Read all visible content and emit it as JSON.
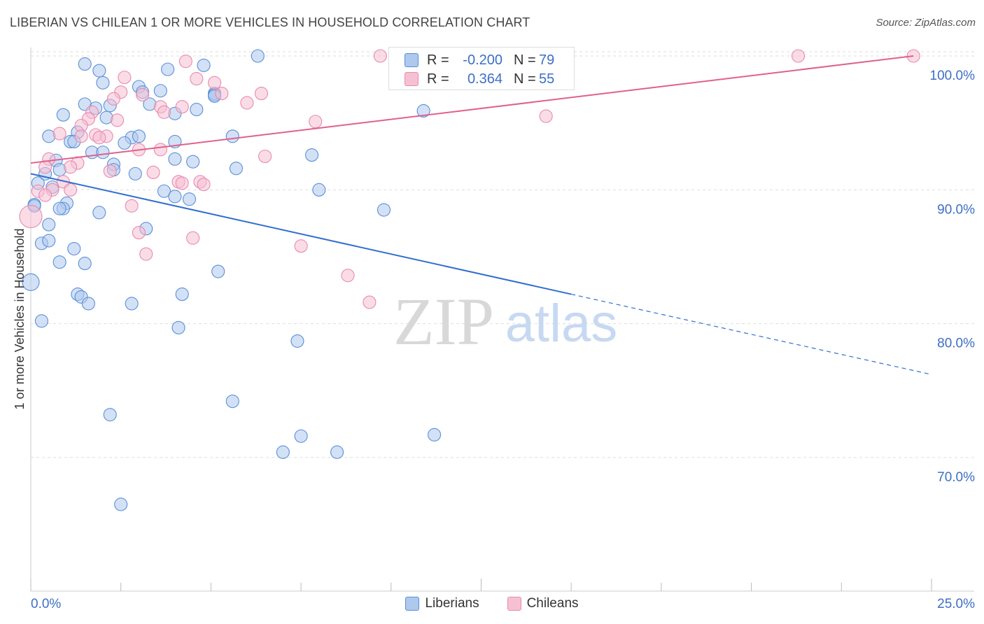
{
  "title": "LIBERIAN VS CHILEAN 1 OR MORE VEHICLES IN HOUSEHOLD CORRELATION CHART",
  "source": "Source: ZipAtlas.com",
  "colors": {
    "blue_fill": "#aec8ee",
    "blue_stroke": "#5b8fd6",
    "blue_line": "#2f6fce",
    "pink_fill": "#f6c0d3",
    "pink_stroke": "#e98aac",
    "pink_line": "#e0608d",
    "axis_text": "#3d6fc4",
    "grid": "#dddddd"
  },
  "correlation_box": {
    "rows": [
      {
        "series": "Liberians",
        "r_label": "R =",
        "r_value": "-0.200",
        "n_label": "N =",
        "n_value": "79"
      },
      {
        "series": "Chileans",
        "r_label": "R =",
        "r_value": "0.364",
        "n_label": "N =",
        "n_value": "55"
      }
    ]
  },
  "legend": {
    "items": [
      {
        "label": "Liberians",
        "color": "blue"
      },
      {
        "label": "Chileans",
        "color": "pink"
      }
    ]
  },
  "watermark": {
    "zip": "ZIP",
    "atlas": "atlas"
  },
  "chart_data": {
    "type": "scatter",
    "title": "LIBERIAN VS CHILEAN 1 OR MORE VEHICLES IN HOUSEHOLD CORRELATION CHART",
    "xlabel": "",
    "ylabel": "1 or more Vehicles in Household",
    "xlim": [
      0,
      25
    ],
    "ylim": [
      60.5,
      101.8
    ],
    "x_tick_labels": [
      "0.0%",
      "25.0%"
    ],
    "y_ticks": [
      70,
      80,
      90,
      100
    ],
    "y_tick_labels": [
      "70.0%",
      "80.0%",
      "90.0%",
      "100.0%"
    ],
    "grid": "horizontal dashed",
    "legend_position": "bottom-center",
    "series": [
      {
        "name": "Liberians",
        "color": "blue",
        "trend": {
          "x0": 0.0,
          "y0": 91.2,
          "x_solid_end": 15.0,
          "y_solid_end": 82.2,
          "x1": 25.0,
          "y1": 76.2
        },
        "points": [
          [
            6.3,
            100.0
          ],
          [
            1.5,
            99.4
          ],
          [
            3.8,
            99.0
          ],
          [
            4.8,
            99.3
          ],
          [
            1.9,
            98.9
          ],
          [
            2.0,
            98.0
          ],
          [
            3.0,
            97.7
          ],
          [
            3.1,
            97.3
          ],
          [
            3.6,
            97.4
          ],
          [
            5.1,
            97.2
          ],
          [
            5.1,
            97.1
          ],
          [
            1.5,
            96.4
          ],
          [
            1.8,
            96.1
          ],
          [
            2.2,
            96.3
          ],
          [
            3.3,
            96.4
          ],
          [
            4.0,
            95.7
          ],
          [
            4.6,
            96.0
          ],
          [
            0.9,
            95.6
          ],
          [
            2.1,
            95.4
          ],
          [
            10.9,
            95.9
          ],
          [
            0.5,
            94.0
          ],
          [
            1.3,
            94.3
          ],
          [
            2.8,
            93.9
          ],
          [
            3.0,
            94.0
          ],
          [
            2.6,
            93.5
          ],
          [
            4.0,
            93.6
          ],
          [
            1.1,
            93.6
          ],
          [
            1.2,
            93.6
          ],
          [
            5.6,
            94.0
          ],
          [
            1.7,
            92.8
          ],
          [
            2.0,
            92.8
          ],
          [
            0.7,
            92.2
          ],
          [
            2.3,
            91.9
          ],
          [
            4.0,
            92.3
          ],
          [
            4.5,
            92.1
          ],
          [
            7.8,
            92.6
          ],
          [
            0.8,
            91.5
          ],
          [
            0.4,
            91.2
          ],
          [
            2.3,
            91.5
          ],
          [
            2.9,
            91.2
          ],
          [
            5.7,
            91.6
          ],
          [
            0.2,
            90.5
          ],
          [
            0.6,
            90.2
          ],
          [
            3.7,
            89.9
          ],
          [
            4.0,
            89.5
          ],
          [
            4.4,
            89.3
          ],
          [
            8.0,
            90.0
          ],
          [
            0.1,
            88.9
          ],
          [
            1.0,
            89.0
          ],
          [
            0.9,
            88.6
          ],
          [
            0.8,
            88.6
          ],
          [
            1.9,
            88.3
          ],
          [
            9.8,
            88.5
          ],
          [
            0.5,
            87.4
          ],
          [
            3.2,
            87.1
          ],
          [
            0.3,
            86.0
          ],
          [
            0.5,
            86.2
          ],
          [
            1.2,
            85.6
          ],
          [
            0.8,
            84.6
          ],
          [
            1.5,
            84.5
          ],
          [
            5.2,
            83.9
          ],
          [
            0.0,
            83.1
          ],
          [
            1.3,
            82.2
          ],
          [
            1.4,
            82.0
          ],
          [
            1.6,
            81.5
          ],
          [
            2.8,
            81.5
          ],
          [
            4.2,
            82.2
          ],
          [
            0.3,
            80.2
          ],
          [
            4.1,
            79.7
          ],
          [
            7.4,
            78.7
          ],
          [
            5.6,
            74.2
          ],
          [
            2.2,
            73.2
          ],
          [
            7.5,
            71.6
          ],
          [
            11.2,
            71.7
          ],
          [
            7.0,
            70.4
          ],
          [
            8.5,
            70.4
          ],
          [
            2.5,
            66.5
          ],
          [
            5.1,
            97.0
          ],
          [
            0.1,
            88.8
          ]
        ]
      },
      {
        "name": "Chileans",
        "color": "pink",
        "trend": {
          "x0": 0.0,
          "y0": 92.0,
          "x1": 24.5,
          "y1": 100.0
        },
        "points": [
          [
            9.7,
            100.0
          ],
          [
            13.8,
            100.0
          ],
          [
            14.1,
            100.0
          ],
          [
            21.3,
            100.0
          ],
          [
            24.5,
            100.0
          ],
          [
            4.3,
            99.6
          ],
          [
            4.6,
            98.3
          ],
          [
            5.1,
            98.0
          ],
          [
            2.6,
            98.4
          ],
          [
            5.3,
            97.2
          ],
          [
            6.4,
            97.2
          ],
          [
            2.5,
            97.3
          ],
          [
            3.1,
            97.1
          ],
          [
            2.3,
            96.8
          ],
          [
            4.2,
            96.2
          ],
          [
            6.0,
            96.5
          ],
          [
            3.6,
            96.2
          ],
          [
            3.7,
            95.8
          ],
          [
            1.7,
            95.8
          ],
          [
            1.6,
            95.3
          ],
          [
            2.4,
            95.2
          ],
          [
            1.4,
            94.8
          ],
          [
            7.9,
            95.1
          ],
          [
            14.3,
            95.5
          ],
          [
            0.8,
            94.2
          ],
          [
            1.8,
            94.1
          ],
          [
            2.1,
            94.0
          ],
          [
            1.4,
            94.0
          ],
          [
            1.9,
            93.9
          ],
          [
            3.0,
            93.0
          ],
          [
            3.6,
            93.0
          ],
          [
            6.5,
            92.5
          ],
          [
            0.5,
            92.3
          ],
          [
            1.3,
            92.0
          ],
          [
            0.4,
            91.7
          ],
          [
            1.1,
            91.7
          ],
          [
            2.2,
            91.4
          ],
          [
            3.4,
            91.3
          ],
          [
            0.9,
            90.6
          ],
          [
            4.1,
            90.6
          ],
          [
            4.2,
            90.5
          ],
          [
            4.7,
            90.6
          ],
          [
            4.8,
            90.4
          ],
          [
            0.2,
            89.9
          ],
          [
            0.6,
            90.0
          ],
          [
            1.1,
            90.0
          ],
          [
            0.4,
            89.6
          ],
          [
            2.8,
            88.8
          ],
          [
            0.0,
            88.0
          ],
          [
            3.0,
            86.8
          ],
          [
            4.5,
            86.4
          ],
          [
            7.5,
            85.8
          ],
          [
            3.2,
            85.2
          ],
          [
            8.8,
            83.6
          ],
          [
            9.4,
            81.6
          ]
        ]
      }
    ]
  }
}
